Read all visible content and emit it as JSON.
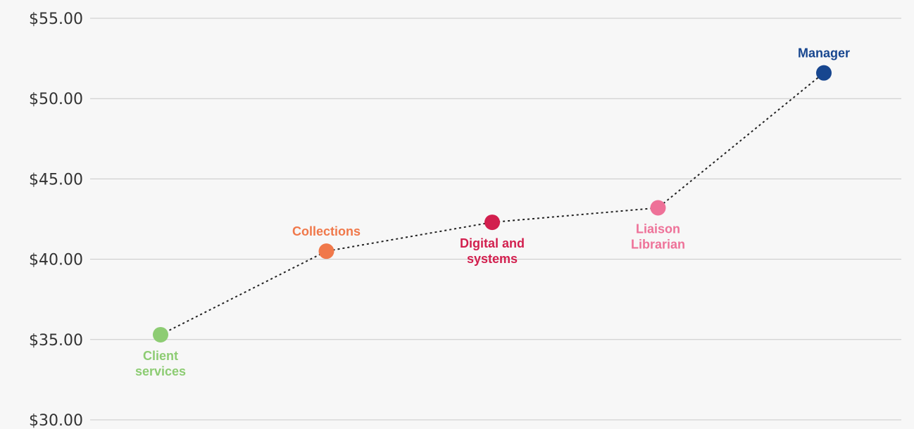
{
  "chart_data": {
    "type": "scatter",
    "ylim": [
      30,
      55
    ],
    "yticks": [
      30,
      35,
      40,
      45,
      50,
      55
    ],
    "ytick_labels": [
      "$30.00",
      "$35.00",
      "$40.00",
      "$45.00",
      "$50.00",
      "$55.00"
    ],
    "grid": true,
    "connector": "dotted",
    "points": [
      {
        "label_lines": [
          "Client",
          "services"
        ],
        "value": 35.3,
        "color": "#8dcc73",
        "label_position": "below"
      },
      {
        "label_lines": [
          "Collections"
        ],
        "value": 40.5,
        "color": "#f0784a",
        "label_position": "above"
      },
      {
        "label_lines": [
          "Digital and",
          "systems"
        ],
        "value": 42.3,
        "color": "#d21f4e",
        "label_position": "below"
      },
      {
        "label_lines": [
          "Liaison",
          "Librarian"
        ],
        "value": 43.2,
        "color": "#ee7198",
        "label_position": "below"
      },
      {
        "label_lines": [
          "Manager"
        ],
        "value": 51.6,
        "color": "#17468f",
        "label_position": "above"
      }
    ]
  }
}
